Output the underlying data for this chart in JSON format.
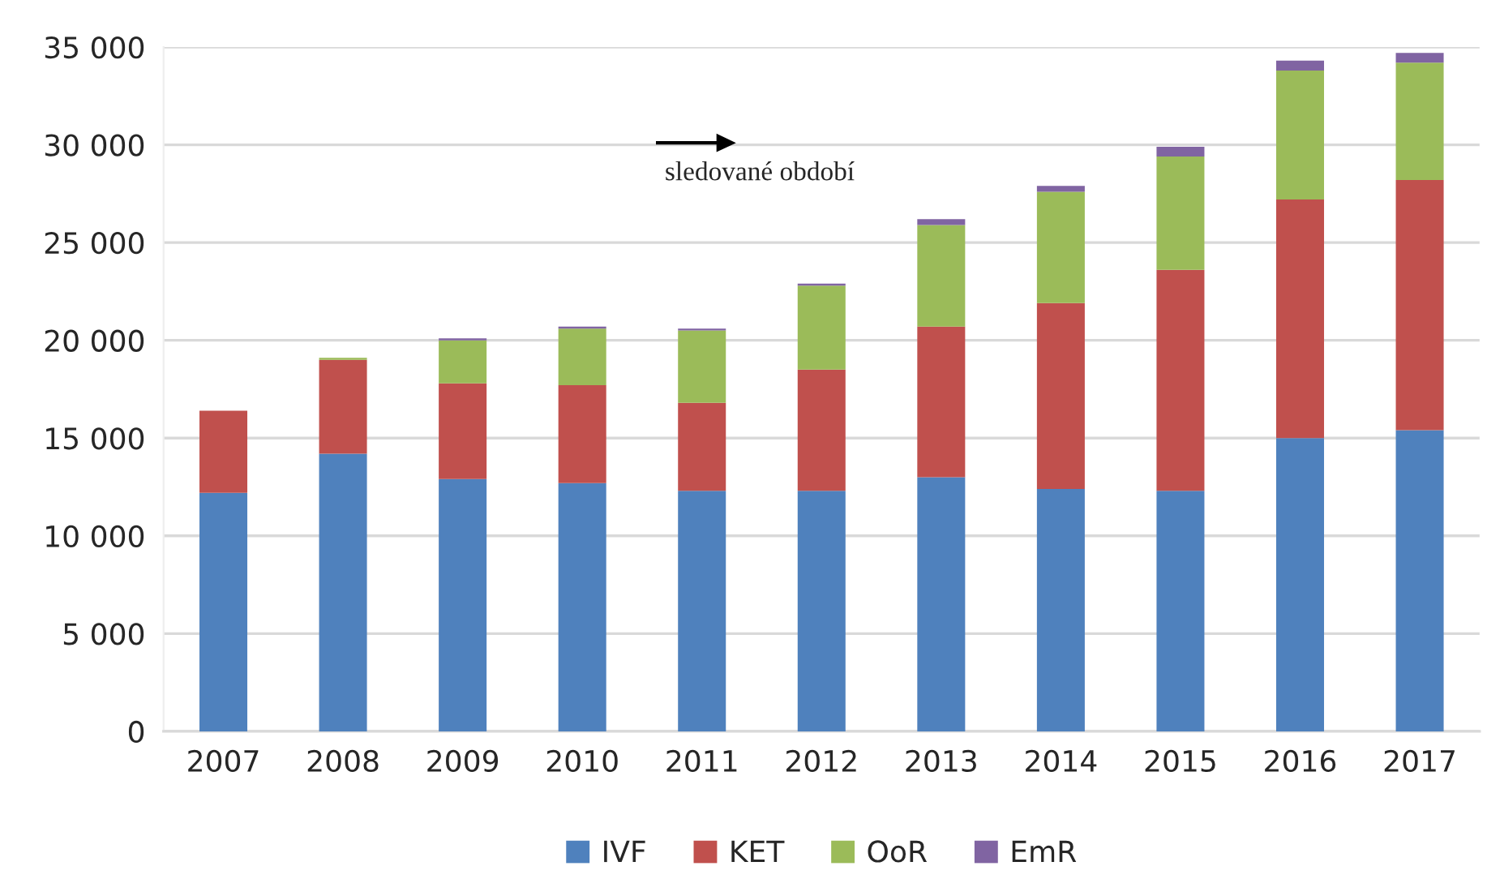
{
  "chart_data": {
    "type": "bar",
    "stacked": true,
    "categories": [
      "2007",
      "2008",
      "2009",
      "2010",
      "2011",
      "2012",
      "2013",
      "2014",
      "2015",
      "2016",
      "2017"
    ],
    "series": [
      {
        "name": "IVF",
        "color": "#4f81bd",
        "values": [
          12200,
          14200,
          12900,
          12700,
          12300,
          12300,
          13000,
          12400,
          12300,
          15000,
          15400
        ]
      },
      {
        "name": "KET",
        "color": "#c0504d",
        "values": [
          4200,
          4800,
          4900,
          5000,
          4500,
          6200,
          7700,
          9500,
          11300,
          12200,
          12800
        ]
      },
      {
        "name": "OoR",
        "color": "#9bbb59",
        "values": [
          null,
          100,
          2200,
          2900,
          3700,
          4300,
          5200,
          5700,
          5800,
          6600,
          6000
        ]
      },
      {
        "name": "EmR",
        "color": "#8064a2",
        "values": [
          null,
          null,
          100,
          100,
          100,
          100,
          300,
          300,
          500,
          500,
          500
        ]
      }
    ],
    "ylim": [
      0,
      35000
    ],
    "yticks": [
      {
        "value": 0,
        "label": "0"
      },
      {
        "value": 5000,
        "label": "5 000"
      },
      {
        "value": 10000,
        "label": "10 000"
      },
      {
        "value": 15000,
        "label": "15 000"
      },
      {
        "value": 20000,
        "label": "20 000"
      },
      {
        "value": 25000,
        "label": "25 000"
      },
      {
        "value": 30000,
        "label": "30 000"
      },
      {
        "value": 35000,
        "label": "35 000"
      }
    ],
    "grid": "y",
    "legend": "bottom",
    "annotations": [
      "sledované období"
    ]
  }
}
